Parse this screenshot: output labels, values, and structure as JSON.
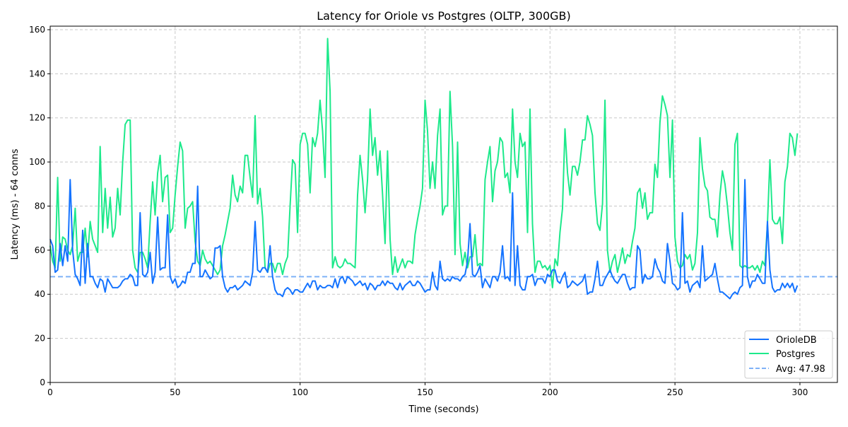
{
  "chart_data": {
    "type": "line",
    "title": "Latency for Oriole vs Postgres (OLTP, 300GB)",
    "xlabel": "Time (seconds)",
    "ylabel": "Latency (ms) - 64 conns",
    "xlim": [
      0,
      315
    ],
    "ylim": [
      0,
      161.6
    ],
    "xticks": [
      0,
      50,
      100,
      150,
      200,
      250,
      300
    ],
    "yticks": [
      0,
      20,
      40,
      60,
      80,
      100,
      120,
      140,
      160
    ],
    "grid": true,
    "legend_placement": "lower-right",
    "x_start": 0,
    "x_step": 1,
    "series": [
      {
        "name": "OrioleDB",
        "color": "#1473ff",
        "values": [
          65,
          62,
          50,
          51,
          63,
          53,
          62,
          55,
          92,
          60,
          49,
          47,
          44,
          69,
          45,
          63,
          48,
          48,
          45,
          43,
          47,
          46,
          41,
          47,
          45,
          43,
          43,
          43,
          44,
          46,
          47,
          47,
          49,
          48,
          44,
          44,
          77,
          49,
          48,
          50,
          59,
          45,
          50,
          75,
          51,
          52,
          52,
          76,
          48,
          45,
          47,
          43,
          44,
          46,
          45,
          50,
          50,
          54,
          54,
          89,
          48,
          48,
          51,
          49,
          47,
          48,
          61,
          61,
          62,
          48,
          43,
          41,
          43,
          43,
          44,
          42,
          43,
          44,
          46,
          45,
          44,
          50,
          73,
          51,
          50,
          52,
          52,
          50,
          62,
          48,
          42,
          40,
          40,
          39,
          42,
          43,
          42,
          40,
          42,
          42,
          41,
          41,
          43,
          45,
          43,
          46,
          46,
          42,
          44,
          43,
          43,
          44,
          44,
          43,
          47,
          43,
          47,
          48,
          45,
          48,
          47,
          46,
          44,
          45,
          46,
          44,
          45,
          42,
          45,
          44,
          42,
          44,
          44,
          46,
          44,
          46,
          45,
          45,
          43,
          42,
          45,
          42,
          44,
          45,
          46,
          44,
          44,
          46,
          45,
          43,
          41,
          42,
          42,
          50,
          44,
          42,
          55,
          47,
          46,
          47,
          46,
          48,
          47,
          47,
          46,
          48,
          49,
          55,
          72,
          49,
          48,
          50,
          53,
          43,
          47,
          45,
          43,
          48,
          48,
          46,
          50,
          62,
          47,
          48,
          46,
          86,
          44,
          62,
          44,
          42,
          42,
          48,
          48,
          49,
          44,
          47,
          47,
          47,
          45,
          49,
          48,
          51,
          51,
          46,
          45,
          48,
          50,
          43,
          44,
          46,
          45,
          44,
          45,
          46,
          49,
          40,
          41,
          41,
          47,
          55,
          44,
          44,
          47,
          49,
          51,
          48,
          46,
          45,
          47,
          49,
          49,
          45,
          42,
          43,
          43,
          62,
          60,
          45,
          49,
          47,
          47,
          48,
          56,
          52,
          50,
          46,
          45,
          63,
          55,
          45,
          44,
          42,
          43,
          77,
          45,
          46,
          41,
          44,
          45,
          46,
          43,
          62,
          46,
          47,
          48,
          49,
          54,
          47,
          41,
          41,
          40,
          39,
          38,
          40,
          41,
          40,
          43,
          44,
          92,
          48,
          43,
          46,
          46,
          49,
          47,
          45,
          45,
          73,
          51,
          43,
          41,
          42,
          42,
          45,
          43,
          45,
          43,
          45,
          41,
          44
        ]
      },
      {
        "name": "Postgres",
        "color": "#1de98b",
        "values": [
          62,
          55,
          52,
          93,
          55,
          66,
          65,
          60,
          58,
          62,
          79,
          55,
          59,
          59,
          70,
          57,
          73,
          65,
          62,
          59,
          107,
          68,
          88,
          70,
          84,
          66,
          70,
          88,
          76,
          100,
          117,
          119,
          119,
          60,
          52,
          50,
          59,
          59,
          56,
          52,
          73,
          91,
          76,
          95,
          103,
          82,
          93,
          94,
          68,
          70,
          85,
          98,
          109,
          105,
          70,
          79,
          80,
          82,
          64,
          55,
          53,
          60,
          56,
          54,
          55,
          53,
          51,
          49,
          51,
          62,
          67,
          73,
          79,
          94,
          85,
          82,
          89,
          86,
          103,
          103,
          93,
          84,
          121,
          81,
          88,
          75,
          52,
          50,
          54,
          54,
          50,
          54,
          54,
          49,
          54,
          57,
          80,
          101,
          99,
          68,
          108,
          113,
          113,
          108,
          86,
          111,
          107,
          113,
          128,
          114,
          93,
          156,
          132,
          52,
          57,
          53,
          52,
          53,
          56,
          54,
          54,
          53,
          52,
          85,
          103,
          92,
          77,
          92,
          124,
          103,
          111,
          94,
          105,
          85,
          63,
          105,
          65,
          49,
          57,
          50,
          53,
          56,
          52,
          55,
          55,
          54,
          67,
          74,
          80,
          88,
          128,
          114,
          88,
          100,
          88,
          112,
          124,
          76,
          80,
          80,
          132,
          107,
          58,
          109,
          63,
          53,
          59,
          52,
          57,
          57,
          67,
          53,
          54,
          53,
          92,
          100,
          107,
          82,
          96,
          100,
          111,
          109,
          93,
          95,
          86,
          124,
          100,
          93,
          113,
          107,
          109,
          68,
          124,
          72,
          50,
          55,
          55,
          52,
          53,
          51,
          53,
          43,
          56,
          53,
          68,
          79,
          115,
          95,
          85,
          98,
          98,
          94,
          100,
          110,
          110,
          121,
          117,
          112,
          86,
          72,
          69,
          81,
          128,
          60,
          50,
          55,
          58,
          50,
          55,
          61,
          54,
          58,
          57,
          64,
          70,
          86,
          88,
          79,
          86,
          74,
          77,
          77,
          99,
          93,
          118,
          130,
          126,
          121,
          93,
          119,
          66,
          55,
          52,
          53,
          58,
          56,
          58,
          51,
          54,
          68,
          111,
          97,
          89,
          87,
          75,
          74,
          74,
          66,
          85,
          96,
          90,
          80,
          68,
          60,
          108,
          113,
          53,
          52,
          53,
          52,
          52,
          53,
          51,
          53,
          50,
          55,
          53,
          72,
          101,
          74,
          72,
          72,
          75,
          63,
          91,
          98,
          113,
          111,
          103,
          113
        ]
      }
    ],
    "reference_lines": [
      {
        "name": "Avg: 47.98",
        "value": 47.98,
        "color": "#7fb2f7",
        "style": "dashed"
      }
    ]
  }
}
